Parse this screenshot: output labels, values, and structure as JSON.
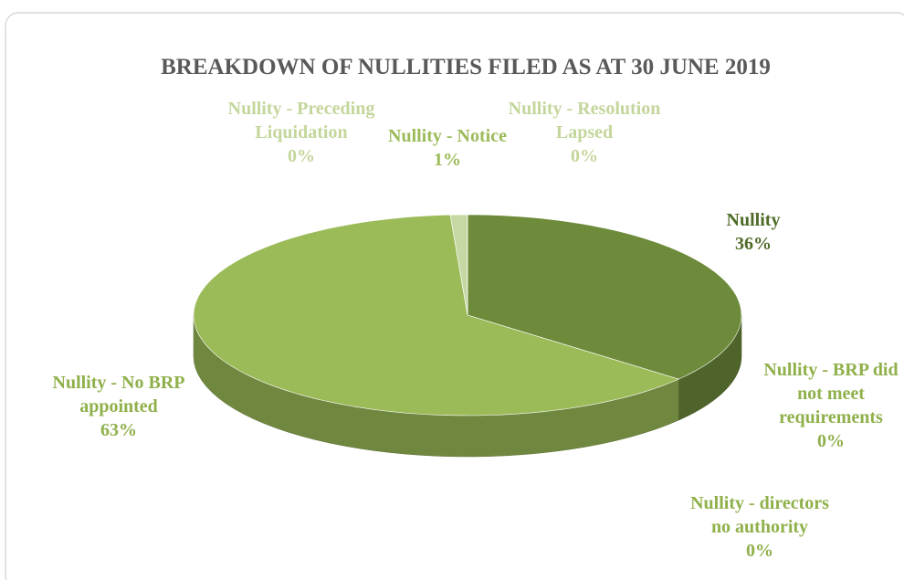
{
  "chart_data": {
    "type": "pie",
    "title": "BREAKDOWN OF NULLITIES FILED AS AT 30 JUNE 2019",
    "categories": [
      "Nullity",
      "Nullity - BRP did not meet requirements",
      "Nullity - directors no authority",
      "Nullity - No BRP appointed",
      "Nullity - Preceding Liquidation",
      "Nullity - Notice",
      "Nullity - Resolution Lapsed"
    ],
    "values": [
      36,
      0,
      0,
      63,
      0,
      1,
      0
    ],
    "value_labels": [
      "36%",
      "0%",
      "0%",
      "63%",
      "0%",
      "1%",
      "0%"
    ],
    "colors": [
      "#6d8b3b",
      "#7d9a45",
      "#88a94d",
      "#9bbb59",
      "#b2cc82",
      "#c6d9a4",
      "#d4e3b9"
    ],
    "label_colors": [
      "#4f6b28",
      "#8fb04a",
      "#8fb04a",
      "#8fb04a",
      "#c3d69b",
      "#9bbb59",
      "#c3d69b"
    ]
  }
}
